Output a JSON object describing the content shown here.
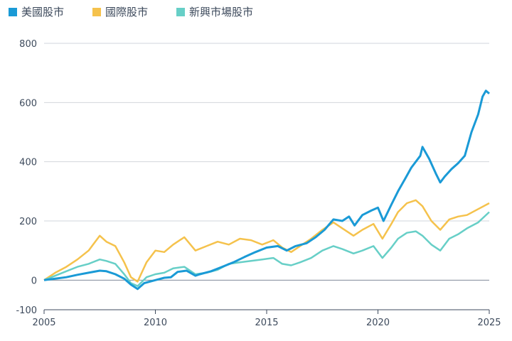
{
  "chart_data": {
    "type": "line",
    "title": "",
    "xlabel": "",
    "ylabel": "",
    "xlim": [
      2005,
      2025
    ],
    "ylim": [
      -100,
      800
    ],
    "x_ticks": [
      2005,
      2010,
      2015,
      2020,
      2025
    ],
    "y_ticks": [
      -100,
      0,
      200,
      400,
      600,
      800
    ],
    "grid": "horizontal",
    "legend_position": "top-left",
    "series": [
      {
        "name": "美國股市",
        "color": "#1a9ad6",
        "points": [
          [
            2005.0,
            0
          ],
          [
            2005.5,
            5
          ],
          [
            2006.0,
            10
          ],
          [
            2006.5,
            18
          ],
          [
            2007.0,
            25
          ],
          [
            2007.5,
            32
          ],
          [
            2007.8,
            30
          ],
          [
            2008.2,
            20
          ],
          [
            2008.6,
            5
          ],
          [
            2008.9,
            -15
          ],
          [
            2009.2,
            -30
          ],
          [
            2009.5,
            -10
          ],
          [
            2010.0,
            0
          ],
          [
            2010.4,
            8
          ],
          [
            2010.7,
            10
          ],
          [
            2011.0,
            28
          ],
          [
            2011.4,
            32
          ],
          [
            2011.8,
            15
          ],
          [
            2012.0,
            20
          ],
          [
            2012.5,
            30
          ],
          [
            2013.0,
            45
          ],
          [
            2013.5,
            60
          ],
          [
            2014.0,
            78
          ],
          [
            2014.5,
            95
          ],
          [
            2015.0,
            110
          ],
          [
            2015.5,
            115
          ],
          [
            2015.9,
            100
          ],
          [
            2016.3,
            115
          ],
          [
            2016.8,
            125
          ],
          [
            2017.2,
            145
          ],
          [
            2017.6,
            170
          ],
          [
            2018.0,
            205
          ],
          [
            2018.4,
            200
          ],
          [
            2018.7,
            215
          ],
          [
            2018.95,
            185
          ],
          [
            2019.3,
            220
          ],
          [
            2019.7,
            235
          ],
          [
            2020.0,
            245
          ],
          [
            2020.25,
            200
          ],
          [
            2020.6,
            255
          ],
          [
            2020.9,
            300
          ],
          [
            2021.2,
            340
          ],
          [
            2021.5,
            380
          ],
          [
            2021.9,
            420
          ],
          [
            2022.0,
            450
          ],
          [
            2022.3,
            410
          ],
          [
            2022.6,
            360
          ],
          [
            2022.8,
            330
          ],
          [
            2023.0,
            350
          ],
          [
            2023.3,
            375
          ],
          [
            2023.6,
            395
          ],
          [
            2023.9,
            420
          ],
          [
            2024.2,
            500
          ],
          [
            2024.5,
            560
          ],
          [
            2024.7,
            620
          ],
          [
            2024.85,
            640
          ],
          [
            2025.0,
            630
          ]
        ]
      },
      {
        "name": "國際股市",
        "color": "#f5c24c",
        "points": [
          [
            2005.0,
            0
          ],
          [
            2005.5,
            25
          ],
          [
            2006.0,
            45
          ],
          [
            2006.5,
            70
          ],
          [
            2007.0,
            100
          ],
          [
            2007.5,
            150
          ],
          [
            2007.8,
            130
          ],
          [
            2008.2,
            115
          ],
          [
            2008.6,
            60
          ],
          [
            2008.9,
            10
          ],
          [
            2009.2,
            -5
          ],
          [
            2009.6,
            60
          ],
          [
            2010.0,
            100
          ],
          [
            2010.4,
            95
          ],
          [
            2010.8,
            120
          ],
          [
            2011.3,
            145
          ],
          [
            2011.8,
            100
          ],
          [
            2012.3,
            115
          ],
          [
            2012.8,
            130
          ],
          [
            2013.3,
            120
          ],
          [
            2013.8,
            140
          ],
          [
            2014.3,
            135
          ],
          [
            2014.8,
            120
          ],
          [
            2015.3,
            135
          ],
          [
            2015.7,
            110
          ],
          [
            2016.1,
            95
          ],
          [
            2016.5,
            115
          ],
          [
            2017.0,
            140
          ],
          [
            2017.5,
            170
          ],
          [
            2018.0,
            195
          ],
          [
            2018.4,
            175
          ],
          [
            2018.9,
            150
          ],
          [
            2019.3,
            170
          ],
          [
            2019.8,
            190
          ],
          [
            2020.2,
            140
          ],
          [
            2020.6,
            190
          ],
          [
            2020.9,
            230
          ],
          [
            2021.3,
            260
          ],
          [
            2021.7,
            270
          ],
          [
            2022.0,
            250
          ],
          [
            2022.4,
            200
          ],
          [
            2022.8,
            170
          ],
          [
            2023.2,
            205
          ],
          [
            2023.6,
            215
          ],
          [
            2024.0,
            220
          ],
          [
            2024.5,
            240
          ],
          [
            2025.0,
            260
          ]
        ]
      },
      {
        "name": "新興市場股市",
        "color": "#67cfc7",
        "points": [
          [
            2005.0,
            0
          ],
          [
            2005.5,
            15
          ],
          [
            2006.0,
            30
          ],
          [
            2006.5,
            45
          ],
          [
            2007.0,
            55
          ],
          [
            2007.5,
            70
          ],
          [
            2007.8,
            65
          ],
          [
            2008.2,
            55
          ],
          [
            2008.6,
            20
          ],
          [
            2008.9,
            -10
          ],
          [
            2009.2,
            -20
          ],
          [
            2009.6,
            10
          ],
          [
            2010.0,
            20
          ],
          [
            2010.4,
            25
          ],
          [
            2010.8,
            40
          ],
          [
            2011.3,
            45
          ],
          [
            2011.8,
            20
          ],
          [
            2012.3,
            25
          ],
          [
            2012.8,
            35
          ],
          [
            2013.3,
            55
          ],
          [
            2013.8,
            60
          ],
          [
            2014.3,
            65
          ],
          [
            2014.8,
            70
          ],
          [
            2015.3,
            75
          ],
          [
            2015.7,
            55
          ],
          [
            2016.1,
            50
          ],
          [
            2016.5,
            60
          ],
          [
            2017.0,
            75
          ],
          [
            2017.5,
            100
          ],
          [
            2018.0,
            115
          ],
          [
            2018.4,
            105
          ],
          [
            2018.9,
            90
          ],
          [
            2019.3,
            100
          ],
          [
            2019.8,
            115
          ],
          [
            2020.2,
            75
          ],
          [
            2020.6,
            110
          ],
          [
            2020.9,
            140
          ],
          [
            2021.3,
            160
          ],
          [
            2021.7,
            165
          ],
          [
            2022.0,
            150
          ],
          [
            2022.4,
            120
          ],
          [
            2022.8,
            100
          ],
          [
            2023.2,
            140
          ],
          [
            2023.6,
            155
          ],
          [
            2024.0,
            175
          ],
          [
            2024.5,
            195
          ],
          [
            2025.0,
            230
          ]
        ]
      }
    ]
  }
}
